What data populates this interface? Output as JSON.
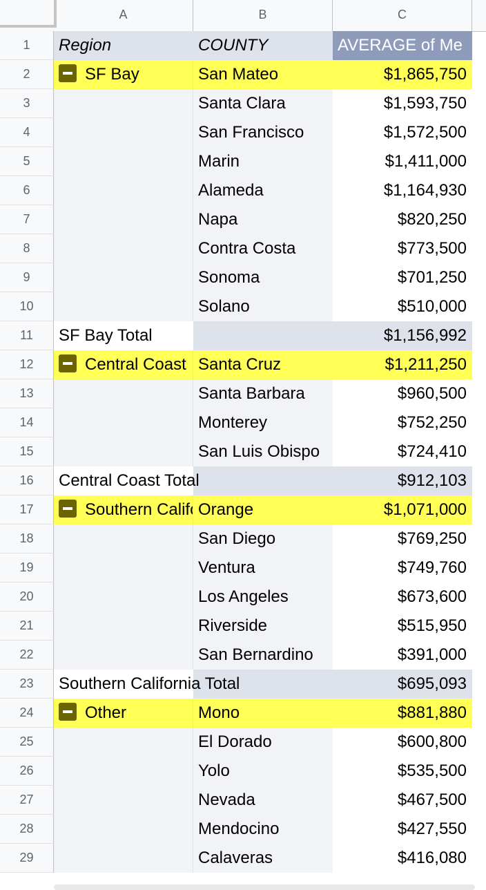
{
  "columns": [
    "A",
    "B",
    "C"
  ],
  "header": {
    "row": "1",
    "region": "Region",
    "county": "COUNTY",
    "average": "AVERAGE of Me"
  },
  "rows": [
    {
      "n": "2",
      "a": "SF Bay",
      "b": "San Mateo",
      "c": "$1,865,750"
    },
    {
      "n": "3",
      "a": "",
      "b": "Santa Clara",
      "c": "$1,593,750"
    },
    {
      "n": "4",
      "a": "",
      "b": "San Francisco",
      "c": "$1,572,500"
    },
    {
      "n": "5",
      "a": "",
      "b": "Marin",
      "c": "$1,411,000"
    },
    {
      "n": "6",
      "a": "",
      "b": "Alameda",
      "c": "$1,164,930"
    },
    {
      "n": "7",
      "a": "",
      "b": "Napa",
      "c": "$820,250"
    },
    {
      "n": "8",
      "a": "",
      "b": "Contra Costa",
      "c": "$773,500"
    },
    {
      "n": "9",
      "a": "",
      "b": "Sonoma",
      "c": "$701,250"
    },
    {
      "n": "10",
      "a": "",
      "b": "Solano",
      "c": "$510,000"
    },
    {
      "n": "11",
      "a": "SF Bay Total",
      "b": "",
      "c": "$1,156,992"
    },
    {
      "n": "12",
      "a": "Central Coast",
      "b": "Santa Cruz",
      "c": "$1,211,250"
    },
    {
      "n": "13",
      "a": "",
      "b": "Santa Barbara",
      "c": "$960,500"
    },
    {
      "n": "14",
      "a": "",
      "b": "Monterey",
      "c": "$752,250"
    },
    {
      "n": "15",
      "a": "",
      "b": "San Luis Obispo",
      "c": "$724,410"
    },
    {
      "n": "16",
      "a": "Central Coast Total",
      "b": "",
      "c": "$912,103"
    },
    {
      "n": "17",
      "a": "Southern California",
      "b": "Orange",
      "c": "$1,071,000"
    },
    {
      "n": "18",
      "a": "",
      "b": "San Diego",
      "c": "$769,250"
    },
    {
      "n": "19",
      "a": "",
      "b": "Ventura",
      "c": "$749,760"
    },
    {
      "n": "20",
      "a": "",
      "b": "Los Angeles",
      "c": "$673,600"
    },
    {
      "n": "21",
      "a": "",
      "b": "Riverside",
      "c": "$515,950"
    },
    {
      "n": "22",
      "a": "",
      "b": "San Bernardino",
      "c": "$391,000"
    },
    {
      "n": "23",
      "a": "Southern California Total",
      "b": "",
      "c": "$695,093"
    },
    {
      "n": "24",
      "a": "Other",
      "b": "Mono",
      "c": "$881,880"
    },
    {
      "n": "25",
      "a": "",
      "b": "El Dorado",
      "c": "$600,800"
    },
    {
      "n": "26",
      "a": "",
      "b": "Yolo",
      "c": "$535,500"
    },
    {
      "n": "27",
      "a": "",
      "b": "Nevada",
      "c": "$467,500"
    },
    {
      "n": "28",
      "a": "",
      "b": "Mendocino",
      "c": "$427,550"
    },
    {
      "n": "29",
      "a": "",
      "b": "Calaveras",
      "c": "$416,080"
    }
  ],
  "colors": {
    "highlight": "#ffff55",
    "total_row": "#dee2ea",
    "header_value": "#8e9bbb",
    "toggle": "#6b6400"
  },
  "icons": {
    "group_toggle": "collapse-minus-icon"
  }
}
